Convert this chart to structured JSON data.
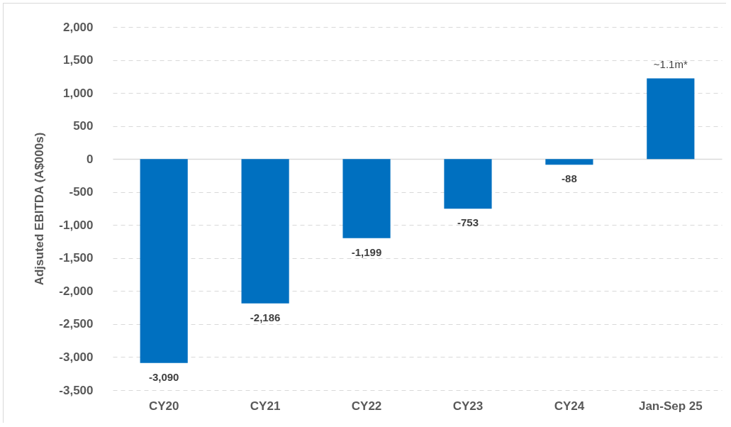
{
  "chart_data": {
    "type": "bar",
    "ylabel": "Adjsuted EBITDA (A$000s)",
    "categories": [
      "CY20",
      "CY21",
      "CY22",
      "CY23",
      "CY24",
      "Jan-Sep 25"
    ],
    "values": [
      -3090,
      -2186,
      -1199,
      -753,
      -88,
      1220
    ],
    "value_labels": [
      "-3,090",
      "-2,186",
      "-1,199",
      "-753",
      "-88",
      null
    ],
    "annotations": [
      {
        "text": "~1.1m*",
        "x": "Jan-Sep 25",
        "y": 1220
      }
    ],
    "color": "#0070c0",
    "ylim": [
      -3500,
      2000
    ],
    "yticks": [
      {
        "value": -3500,
        "label": "-3,500"
      },
      {
        "value": -3000,
        "label": "-3,000"
      },
      {
        "value": -2500,
        "label": "-2,500"
      },
      {
        "value": -2000,
        "label": "-2,000"
      },
      {
        "value": -1500,
        "label": "-1,500"
      },
      {
        "value": -1000,
        "label": "-1,000"
      },
      {
        "value": -500,
        "label": "-500"
      },
      0,
      500,
      {
        "value": 1000,
        "label": "1,000"
      },
      {
        "value": 1500,
        "label": "1,500"
      },
      {
        "value": 2000,
        "label": "2,000"
      }
    ],
    "grid": "y"
  }
}
